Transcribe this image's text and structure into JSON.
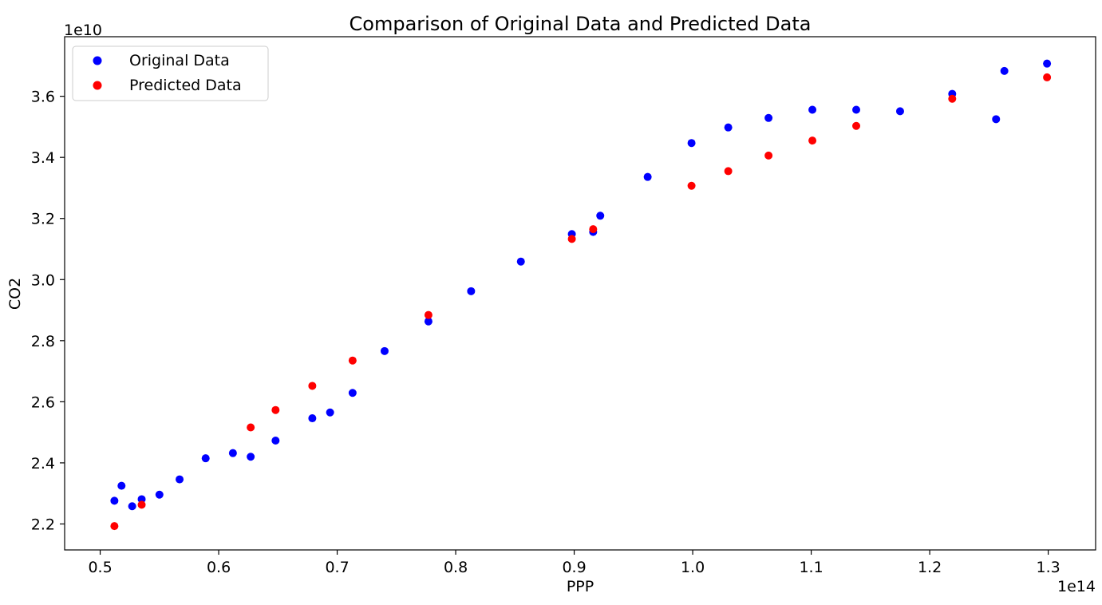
{
  "chart_data": {
    "type": "scatter",
    "title": "Comparison of Original Data and Predicted Data",
    "xlabel": "PPP",
    "ylabel": "CO2",
    "x_multiplier_label": "1e14",
    "y_multiplier_label": "1e10",
    "xlim": [
      0.47,
      1.34
    ],
    "ylim": [
      2.115,
      3.795
    ],
    "xticks": [
      0.5,
      0.6,
      0.7,
      0.8,
      0.9,
      1.0,
      1.1,
      1.2,
      1.3
    ],
    "xtick_labels": [
      "0.5",
      "0.6",
      "0.7",
      "0.8",
      "0.9",
      "1.0",
      "1.1",
      "1.2",
      "1.3"
    ],
    "yticks": [
      2.2,
      2.4,
      2.6,
      2.8,
      3.0,
      3.2,
      3.4,
      3.6
    ],
    "ytick_labels": [
      "2.2",
      "2.4",
      "2.6",
      "2.8",
      "3.0",
      "3.2",
      "3.4",
      "3.6"
    ],
    "grid": false,
    "legend_position": "top-left",
    "series": [
      {
        "name": "Original Data",
        "color": "#0000ff",
        "points": [
          [
            0.512,
            2.276
          ],
          [
            0.518,
            2.325
          ],
          [
            0.527,
            2.258
          ],
          [
            0.535,
            2.281
          ],
          [
            0.55,
            2.296
          ],
          [
            0.567,
            2.346
          ],
          [
            0.589,
            2.415
          ],
          [
            0.612,
            2.432
          ],
          [
            0.627,
            2.42
          ],
          [
            0.648,
            2.473
          ],
          [
            0.679,
            2.546
          ],
          [
            0.694,
            2.565
          ],
          [
            0.713,
            2.629
          ],
          [
            0.74,
            2.766
          ],
          [
            0.777,
            2.863
          ],
          [
            0.813,
            2.962
          ],
          [
            0.855,
            3.059
          ],
          [
            0.898,
            3.149
          ],
          [
            0.916,
            3.156
          ],
          [
            0.922,
            3.209
          ],
          [
            0.962,
            3.336
          ],
          [
            0.999,
            3.447
          ],
          [
            1.03,
            3.498
          ],
          [
            1.064,
            3.529
          ],
          [
            1.101,
            3.556
          ],
          [
            1.138,
            3.556
          ],
          [
            1.175,
            3.551
          ],
          [
            1.219,
            3.608
          ],
          [
            1.256,
            3.525
          ],
          [
            1.263,
            3.683
          ],
          [
            1.299,
            3.707
          ]
        ]
      },
      {
        "name": "Predicted Data",
        "color": "#ff0000",
        "points": [
          [
            0.512,
            2.193
          ],
          [
            0.535,
            2.263
          ],
          [
            0.627,
            2.516
          ],
          [
            0.648,
            2.573
          ],
          [
            0.679,
            2.652
          ],
          [
            0.713,
            2.735
          ],
          [
            0.777,
            2.884
          ],
          [
            0.898,
            3.133
          ],
          [
            0.916,
            3.165
          ],
          [
            0.999,
            3.307
          ],
          [
            1.03,
            3.355
          ],
          [
            1.064,
            3.406
          ],
          [
            1.101,
            3.455
          ],
          [
            1.138,
            3.503
          ],
          [
            1.219,
            3.592
          ],
          [
            1.299,
            3.662
          ]
        ]
      }
    ]
  }
}
